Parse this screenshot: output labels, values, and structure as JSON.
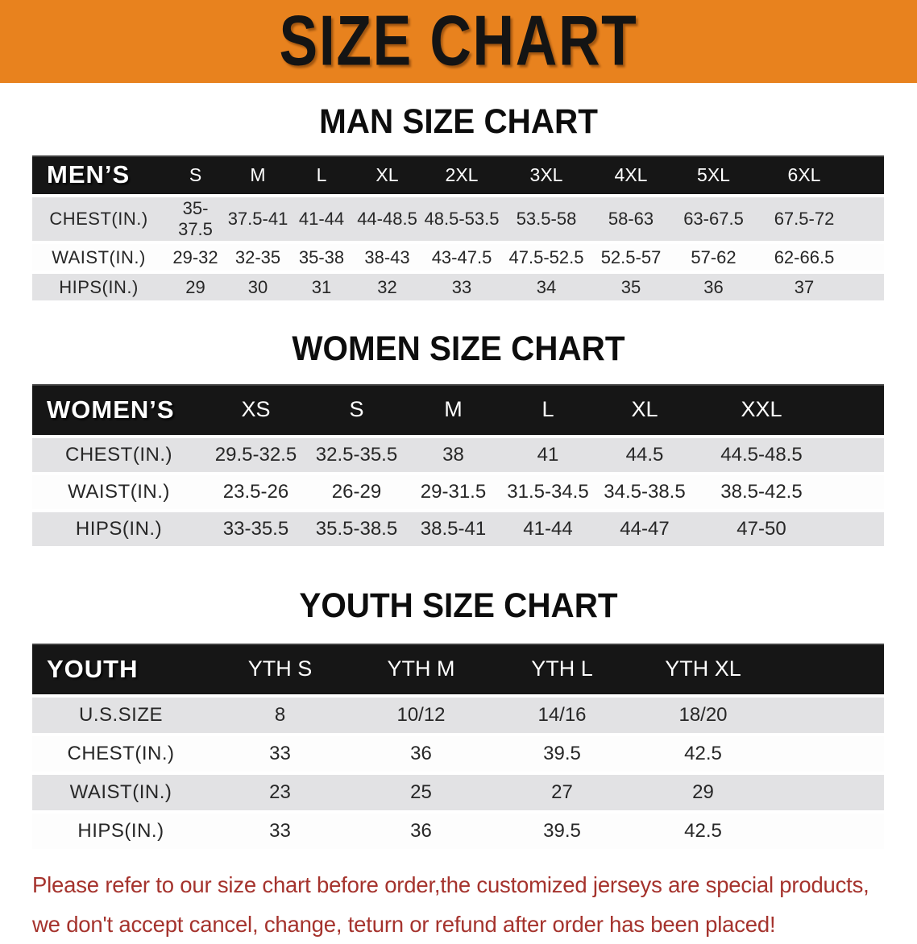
{
  "banner": {
    "title": "SIZE CHART"
  },
  "sections": [
    {
      "id": "men",
      "heading": "MAN SIZE CHART",
      "group_label": "MEN’S",
      "sizes": [
        "S",
        "M",
        "L",
        "XL",
        "2XL",
        "3XL",
        "4XL",
        "5XL",
        "6XL"
      ],
      "rows": [
        {
          "label": "CHEST(IN.)",
          "values": [
            "35-37.5",
            "37.5-41",
            "41-44",
            "44-48.5",
            "48.5-53.5",
            "53.5-58",
            "58-63",
            "63-67.5",
            "67.5-72"
          ]
        },
        {
          "label": "WAIST(IN.)",
          "values": [
            "29-32",
            "32-35",
            "35-38",
            "38-43",
            "43-47.5",
            "47.5-52.5",
            "52.5-57",
            "57-62",
            "62-66.5"
          ]
        },
        {
          "label": "HIPS(IN.)",
          "values": [
            "29",
            "30",
            "31",
            "32",
            "33",
            "34",
            "35",
            "36",
            "37"
          ]
        }
      ]
    },
    {
      "id": "women",
      "heading": "WOMEN SIZE CHART",
      "group_label": "WOMEN’S",
      "sizes": [
        "XS",
        "S",
        "M",
        "L",
        "XL",
        "XXL"
      ],
      "rows": [
        {
          "label": "CHEST(IN.)",
          "values": [
            "29.5-32.5",
            "32.5-35.5",
            "38",
            "41",
            "44.5",
            "44.5-48.5"
          ]
        },
        {
          "label": "WAIST(IN.)",
          "values": [
            "23.5-26",
            "26-29",
            "29-31.5",
            "31.5-34.5",
            "34.5-38.5",
            "38.5-42.5"
          ]
        },
        {
          "label": "HIPS(IN.)",
          "values": [
            "33-35.5",
            "35.5-38.5",
            "38.5-41",
            "41-44",
            "44-47",
            "47-50"
          ]
        }
      ]
    },
    {
      "id": "youth",
      "heading": "YOUTH SIZE CHART",
      "group_label": "YOUTH",
      "sizes": [
        "YTH S",
        "YTH M",
        "YTH L",
        "YTH XL"
      ],
      "rows": [
        {
          "label": "U.S.SIZE",
          "values": [
            "8",
            "10/12",
            "14/16",
            "18/20"
          ]
        },
        {
          "label": "CHEST(IN.)",
          "values": [
            "33",
            "36",
            "39.5",
            "42.5"
          ]
        },
        {
          "label": "WAIST(IN.)",
          "values": [
            "23",
            "25",
            "27",
            "29"
          ]
        },
        {
          "label": "HIPS(IN.)",
          "values": [
            "33",
            "36",
            "39.5",
            "42.5"
          ]
        }
      ]
    }
  ],
  "footer": {
    "line1": "Please refer to our size chart before order,the customized jerseys are special products,",
    "line2": "we don't accept cancel, change, teturn or refund after order has been placed!"
  },
  "colors": {
    "banner_bg": "#E8821E",
    "header_bar_bg": "#161616",
    "row_alt_bg": "#E2E2E4",
    "footer_text": "#A5332D",
    "heading_text": "#0D0D0D"
  }
}
